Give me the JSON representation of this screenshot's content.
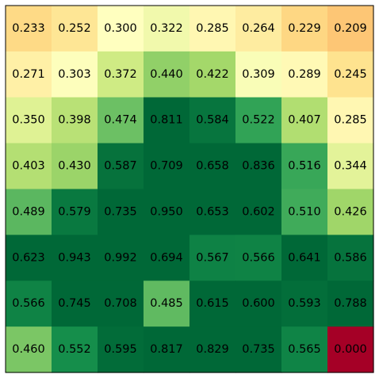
{
  "chart_data": {
    "type": "heatmap",
    "title": "",
    "xlabel": "",
    "ylabel": "",
    "rows": 8,
    "cols": 8,
    "colormap": "RdYlGn",
    "vmin": 0.0,
    "vmax": 0.6,
    "grid": false,
    "show_ticks": false,
    "values": [
      [
        "0.233",
        "0.252",
        "0.300",
        "0.322",
        "0.285",
        "0.264",
        "0.229",
        "0.209"
      ],
      [
        "0.271",
        "0.303",
        "0.372",
        "0.440",
        "0.422",
        "0.309",
        "0.289",
        "0.245"
      ],
      [
        "0.350",
        "0.398",
        "0.474",
        "0.811",
        "0.584",
        "0.522",
        "0.407",
        "0.285"
      ],
      [
        "0.403",
        "0.430",
        "0.587",
        "0.709",
        "0.658",
        "0.836",
        "0.516",
        "0.344"
      ],
      [
        "0.489",
        "0.579",
        "0.735",
        "0.950",
        "0.653",
        "0.602",
        "0.510",
        "0.426"
      ],
      [
        "0.623",
        "0.943",
        "0.992",
        "0.694",
        "0.567",
        "0.566",
        "0.641",
        "0.586"
      ],
      [
        "0.566",
        "0.745",
        "0.708",
        "0.485",
        "0.615",
        "0.600",
        "0.593",
        "0.788"
      ],
      [
        "0.460",
        "0.552",
        "0.595",
        "0.817",
        "0.829",
        "0.735",
        "0.565",
        "0.000"
      ]
    ]
  }
}
